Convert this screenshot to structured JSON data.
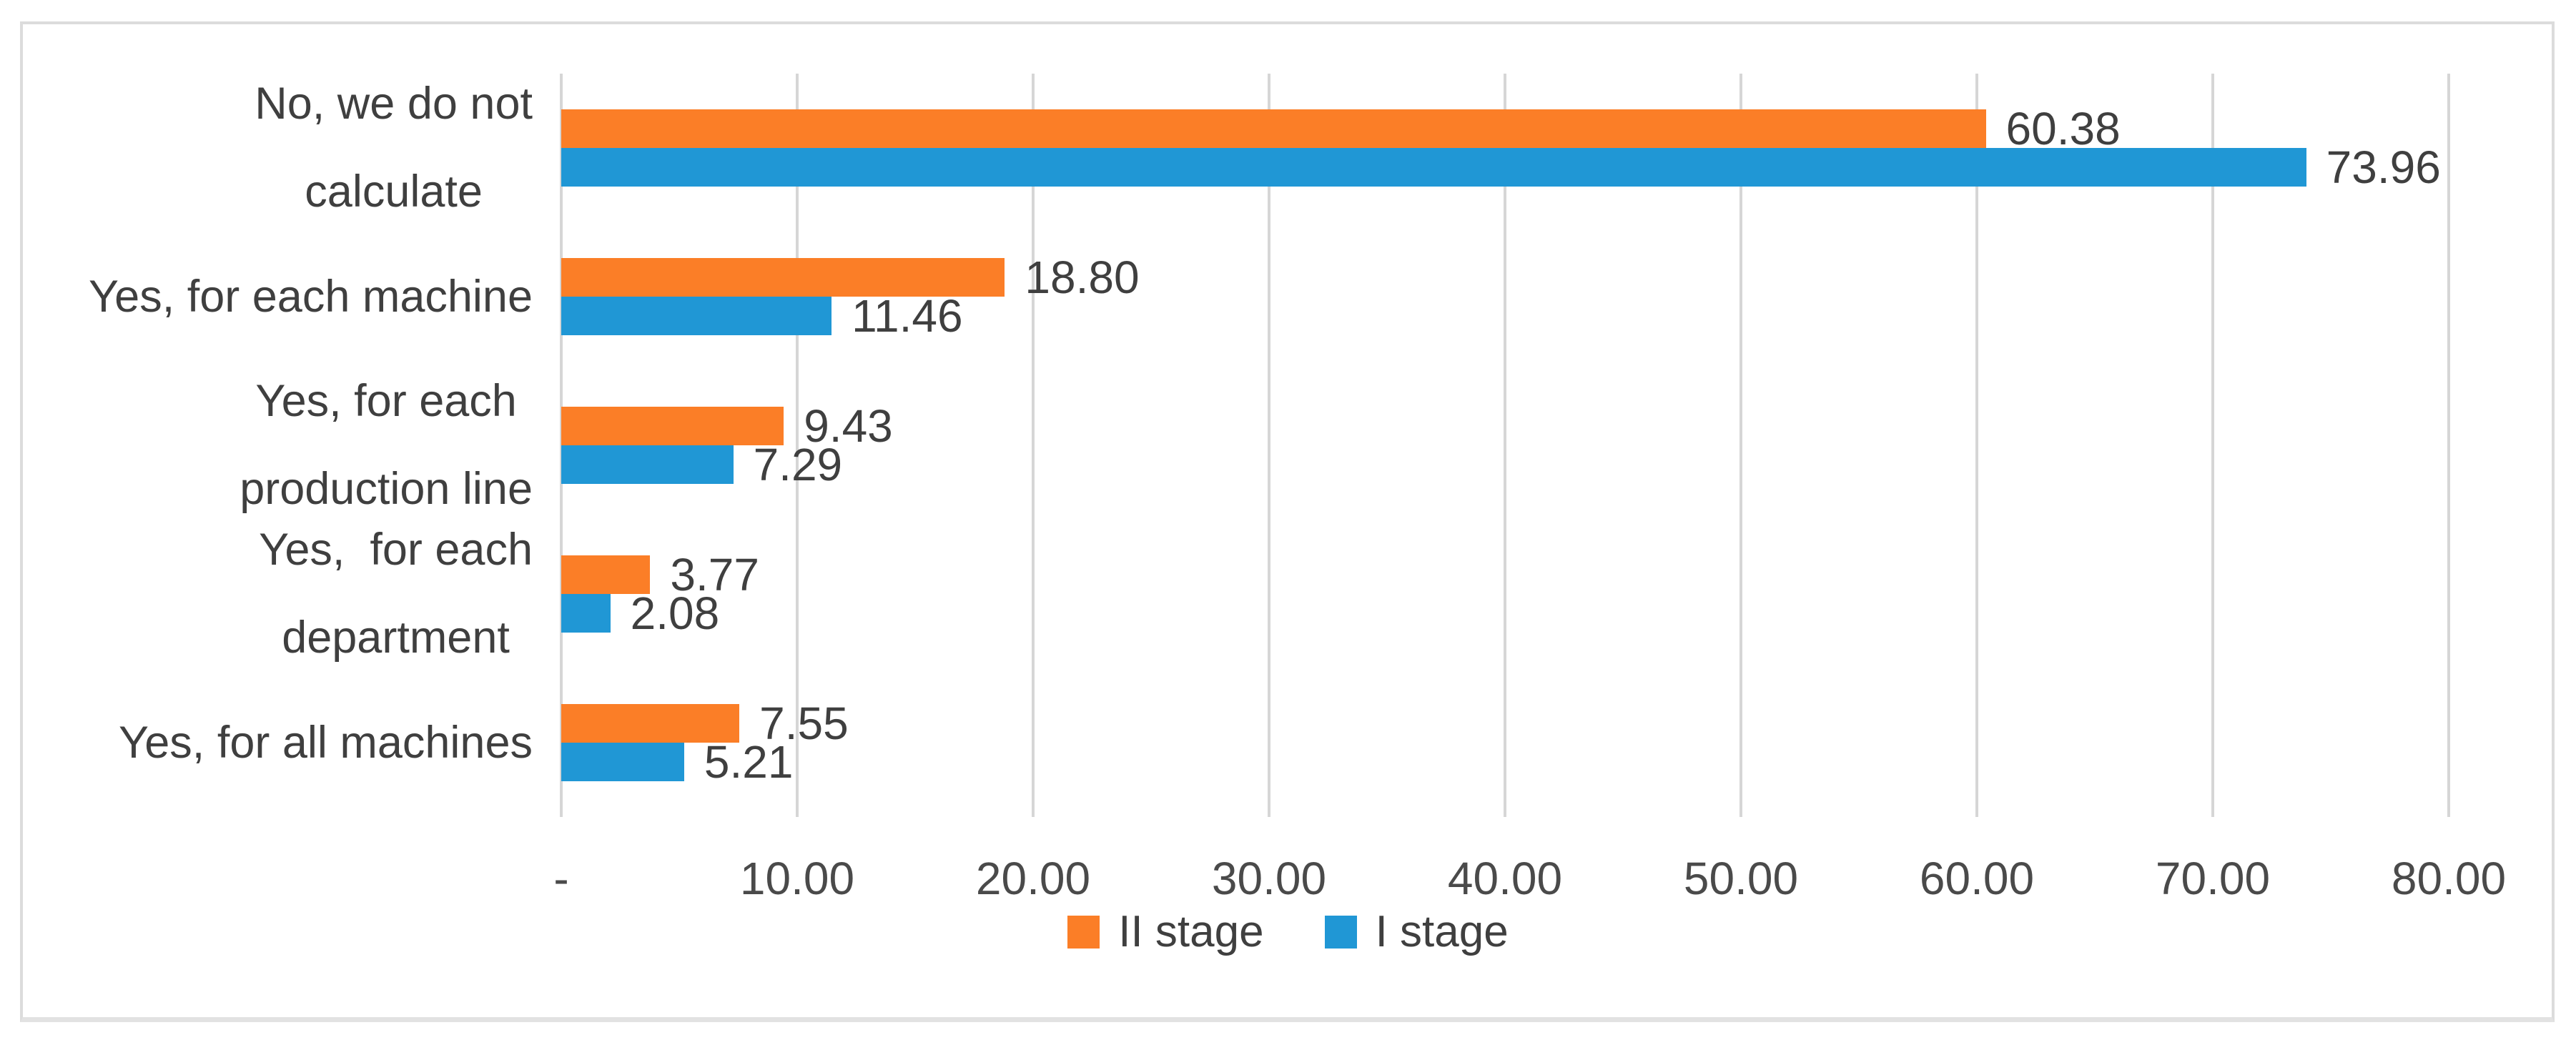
{
  "chart_data": {
    "type": "bar",
    "orientation": "horizontal-grouped",
    "title": "",
    "categories": [
      "No, we do not\ncalculate",
      "Yes, for each machine",
      "Yes, for each\nproduction line",
      "Yes,  for each\ndepartment",
      "Yes, for all machines"
    ],
    "series": [
      {
        "name": "II stage",
        "color": "#FB7E27",
        "values": [
          60.38,
          18.8,
          9.43,
          3.77,
          7.55
        ],
        "value_labels": [
          "60.38",
          "18.80",
          "9.43",
          "3.77",
          "7.55"
        ]
      },
      {
        "name": "I stage",
        "color": "#2097D5",
        "values": [
          73.96,
          11.46,
          7.29,
          2.08,
          5.21
        ],
        "value_labels": [
          "73.96",
          "11.46",
          "7.29",
          "2.08",
          "5.21"
        ]
      }
    ],
    "group_order_top_to_bottom": [
      "II stage",
      "I stage"
    ],
    "xlim": [
      0,
      80
    ],
    "x_ticks": [
      {
        "value": 0,
        "label": "-"
      },
      {
        "value": 10,
        "label": "10.00"
      },
      {
        "value": 20,
        "label": "20.00"
      },
      {
        "value": 30,
        "label": "30.00"
      },
      {
        "value": 40,
        "label": "40.00"
      },
      {
        "value": 50,
        "label": "50.00"
      },
      {
        "value": 60,
        "label": "60.00"
      },
      {
        "value": 70,
        "label": "70.00"
      },
      {
        "value": 80,
        "label": "80.00"
      }
    ],
    "grid": "vertical-gridlines-only",
    "legend_position": "bottom-center",
    "legend": [
      "II stage",
      "I stage"
    ]
  },
  "colors": {
    "series_ii_stage": "#FB7E27",
    "series_i_stage": "#2097D5",
    "gridline": "#D6D6D6",
    "frame_border": "#DCDCDC",
    "text": "#3F3F3F"
  }
}
